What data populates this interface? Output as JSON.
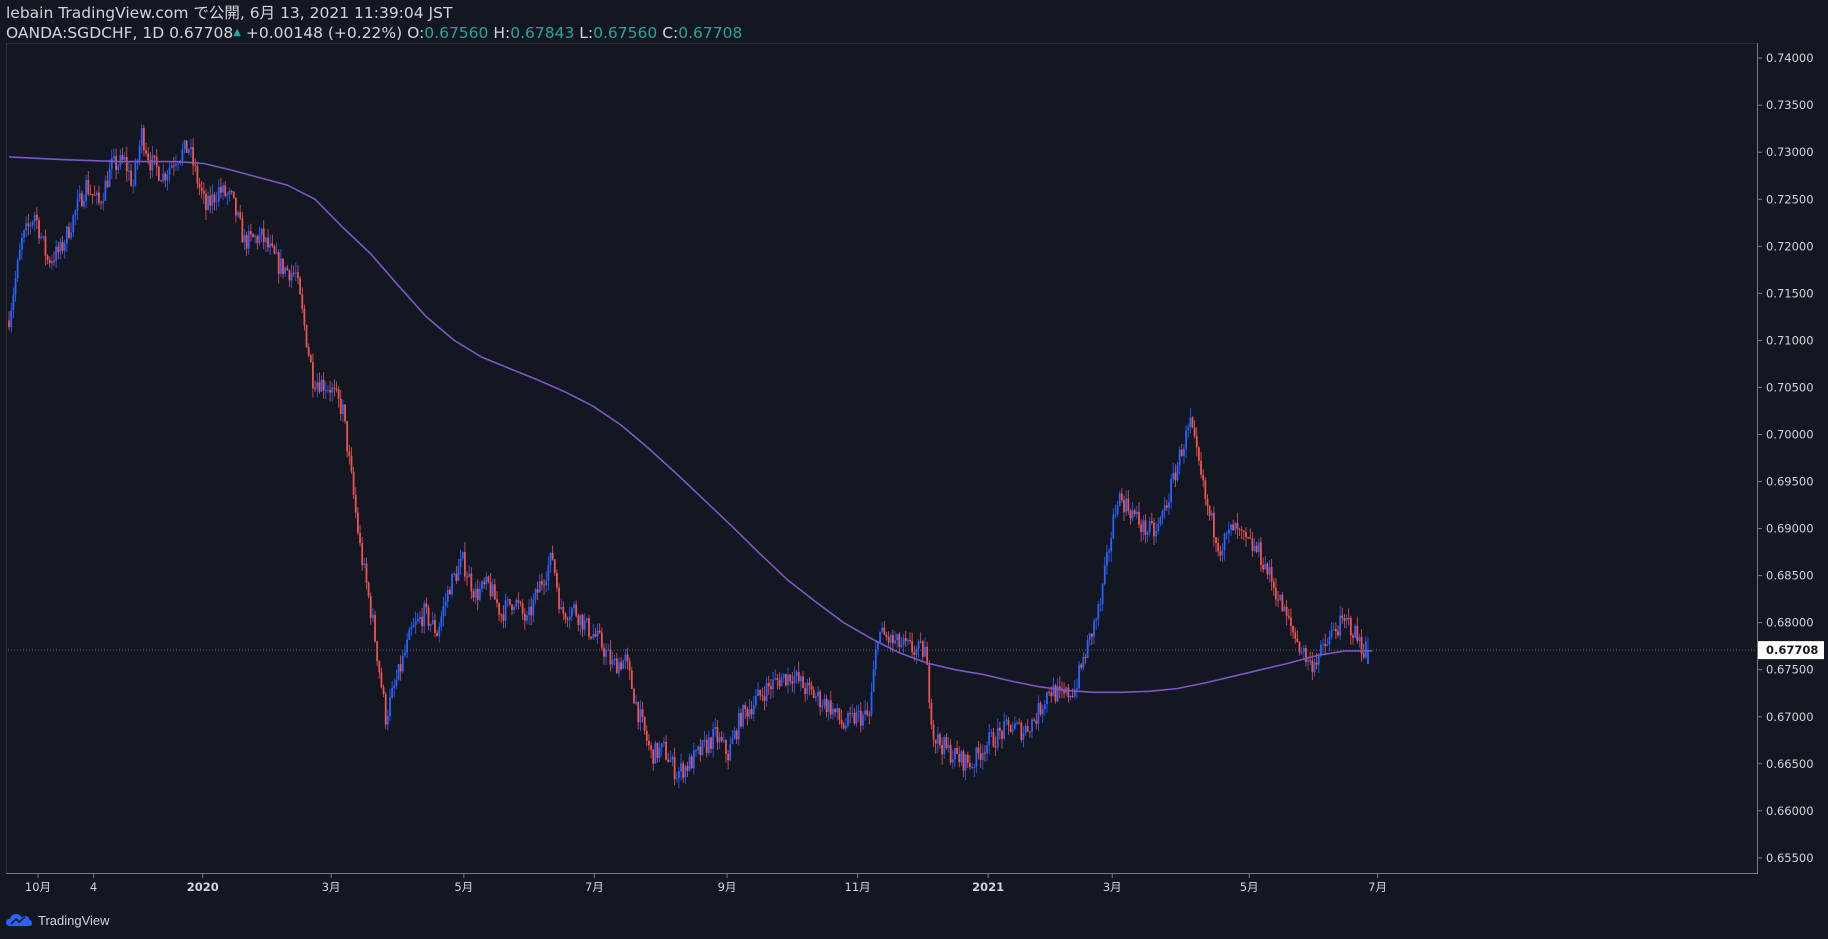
{
  "header": {
    "line1": "lebain TradingView.com で公開, 6月 13, 2021 11:39:04 JST",
    "symbol": "OANDA:SGDCHF, 1D",
    "last": "0.67708",
    "change": "+0.00148 (+0.22%)",
    "o_label": "O:",
    "o_value": "0.67560",
    "h_label": "H:",
    "h_value": "0.67843",
    "l_label": "L:",
    "l_value": "0.67560",
    "c_label": "C:",
    "c_value": "0.67708"
  },
  "footer": {
    "brand": "TradingView"
  },
  "colors": {
    "background": "#131722",
    "up": "#2962ff",
    "down": "#ef5350",
    "ma": "#7e57c2",
    "last_price_label_bg": "#ffffff",
    "axis_text": "#d1d4dc"
  },
  "chart_data": {
    "type": "candlestick",
    "symbol": "OANDA:SGDCHF",
    "interval": "1D",
    "ylim": [
      0.6535,
      0.7415
    ],
    "y_ticks": [
      "0.74000",
      "0.73500",
      "0.73000",
      "0.72500",
      "0.72000",
      "0.71500",
      "0.71000",
      "0.70500",
      "0.70000",
      "0.69500",
      "0.69000",
      "0.68500",
      "0.68000",
      "0.67500",
      "0.67000",
      "0.66500",
      "0.66000",
      "0.65500"
    ],
    "last_price_label": "0.67708",
    "x_ticks": [
      "10月",
      "4",
      "2020",
      "3月",
      "5月",
      "7月",
      "9月",
      "11月",
      "2021",
      "3月",
      "5月",
      "7月"
    ],
    "x_tick_bars": [
      14,
      40,
      91,
      151,
      213,
      274,
      336,
      397,
      458,
      516,
      580,
      640
    ],
    "close_path": [
      [
        0,
        0.7125
      ],
      [
        6,
        0.7205
      ],
      [
        12,
        0.7235
      ],
      [
        18,
        0.7185
      ],
      [
        24,
        0.7195
      ],
      [
        30,
        0.723
      ],
      [
        36,
        0.7265
      ],
      [
        42,
        0.7245
      ],
      [
        48,
        0.7285
      ],
      [
        54,
        0.729
      ],
      [
        58,
        0.7265
      ],
      [
        62,
        0.732
      ],
      [
        66,
        0.729
      ],
      [
        72,
        0.7275
      ],
      [
        78,
        0.7295
      ],
      [
        84,
        0.7305
      ],
      [
        88,
        0.727
      ],
      [
        92,
        0.724
      ],
      [
        98,
        0.726
      ],
      [
        104,
        0.725
      ],
      [
        110,
        0.7205
      ],
      [
        118,
        0.721
      ],
      [
        126,
        0.718
      ],
      [
        134,
        0.717
      ],
      [
        142,
        0.706
      ],
      [
        150,
        0.705
      ],
      [
        156,
        0.7025
      ],
      [
        164,
        0.688
      ],
      [
        170,
        0.68
      ],
      [
        176,
        0.67
      ],
      [
        182,
        0.6745
      ],
      [
        188,
        0.679
      ],
      [
        194,
        0.681
      ],
      [
        200,
        0.679
      ],
      [
        206,
        0.684
      ],
      [
        212,
        0.6865
      ],
      [
        218,
        0.683
      ],
      [
        224,
        0.684
      ],
      [
        230,
        0.681
      ],
      [
        236,
        0.6825
      ],
      [
        242,
        0.68
      ],
      [
        248,
        0.684
      ],
      [
        254,
        0.687
      ],
      [
        258,
        0.681
      ],
      [
        264,
        0.6815
      ],
      [
        270,
        0.6795
      ],
      [
        276,
        0.678
      ],
      [
        282,
        0.6755
      ],
      [
        288,
        0.676
      ],
      [
        294,
        0.6705
      ],
      [
        300,
        0.666
      ],
      [
        306,
        0.6665
      ],
      [
        312,
        0.664
      ],
      [
        318,
        0.665
      ],
      [
        324,
        0.6665
      ],
      [
        330,
        0.668
      ],
      [
        336,
        0.666
      ],
      [
        342,
        0.67
      ],
      [
        348,
        0.6715
      ],
      [
        354,
        0.673
      ],
      [
        360,
        0.674
      ],
      [
        366,
        0.6745
      ],
      [
        372,
        0.673
      ],
      [
        378,
        0.672
      ],
      [
        384,
        0.671
      ],
      [
        390,
        0.669
      ],
      [
        396,
        0.67
      ],
      [
        402,
        0.67
      ],
      [
        406,
        0.679
      ],
      [
        412,
        0.678
      ],
      [
        418,
        0.6775
      ],
      [
        424,
        0.677
      ],
      [
        428,
        0.677
      ],
      [
        432,
        0.668
      ],
      [
        438,
        0.6665
      ],
      [
        444,
        0.6655
      ],
      [
        450,
        0.665
      ],
      [
        456,
        0.667
      ],
      [
        462,
        0.668
      ],
      [
        468,
        0.669
      ],
      [
        474,
        0.6685
      ],
      [
        480,
        0.67
      ],
      [
        486,
        0.673
      ],
      [
        492,
        0.672
      ],
      [
        498,
        0.673
      ],
      [
        504,
        0.6775
      ],
      [
        510,
        0.682
      ],
      [
        514,
        0.688
      ],
      [
        518,
        0.6935
      ],
      [
        524,
        0.692
      ],
      [
        530,
        0.69
      ],
      [
        536,
        0.6895
      ],
      [
        542,
        0.6935
      ],
      [
        548,
        0.6985
      ],
      [
        552,
        0.701
      ],
      [
        556,
        0.6965
      ],
      [
        560,
        0.692
      ],
      [
        566,
        0.688
      ],
      [
        572,
        0.69
      ],
      [
        578,
        0.6885
      ],
      [
        584,
        0.6875
      ],
      [
        590,
        0.6845
      ],
      [
        596,
        0.681
      ],
      [
        602,
        0.678
      ],
      [
        608,
        0.6755
      ],
      [
        614,
        0.677
      ],
      [
        620,
        0.6795
      ],
      [
        626,
        0.68
      ],
      [
        632,
        0.6775
      ],
      [
        635,
        0.6771
      ]
    ],
    "ma_path": [
      [
        0,
        0.7295
      ],
      [
        20,
        0.7292
      ],
      [
        40,
        0.729
      ],
      [
        60,
        0.729
      ],
      [
        70,
        0.7288
      ],
      [
        80,
        0.7281
      ],
      [
        90,
        0.7273
      ],
      [
        100,
        0.7265
      ],
      [
        110,
        0.725
      ],
      [
        120,
        0.722
      ],
      [
        130,
        0.7192
      ],
      [
        140,
        0.7158
      ],
      [
        150,
        0.7125
      ],
      [
        160,
        0.71
      ],
      [
        170,
        0.7082
      ],
      [
        180,
        0.707
      ],
      [
        190,
        0.7058
      ],
      [
        200,
        0.7045
      ],
      [
        210,
        0.703
      ],
      [
        220,
        0.701
      ],
      [
        230,
        0.6985
      ],
      [
        240,
        0.6958
      ],
      [
        250,
        0.693
      ],
      [
        260,
        0.6902
      ],
      [
        270,
        0.6873
      ],
      [
        280,
        0.6845
      ],
      [
        290,
        0.6822
      ],
      [
        300,
        0.68
      ],
      [
        310,
        0.6783
      ],
      [
        320,
        0.6768
      ],
      [
        330,
        0.6757
      ],
      [
        340,
        0.675
      ],
      [
        350,
        0.6745
      ],
      [
        360,
        0.6738
      ],
      [
        370,
        0.6732
      ],
      [
        380,
        0.6728
      ],
      [
        390,
        0.6726
      ],
      [
        400,
        0.6726
      ],
      [
        410,
        0.6727
      ],
      [
        420,
        0.673
      ],
      [
        430,
        0.6736
      ],
      [
        440,
        0.6743
      ],
      [
        450,
        0.675
      ],
      [
        460,
        0.6757
      ],
      [
        470,
        0.6765
      ],
      [
        480,
        0.677
      ],
      [
        490,
        0.677
      ]
    ],
    "ma_path_scale_note": "ma bar index is scaled x1.3 in drawing",
    "last_bar": {
      "o": 0.6756,
      "h": 0.67843,
      "l": 0.6756,
      "c": 0.67708
    }
  }
}
